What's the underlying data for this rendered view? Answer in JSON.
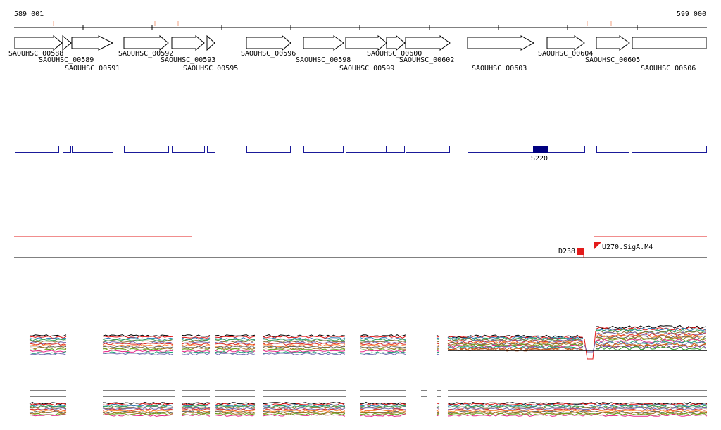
{
  "coordinates": {
    "start_label": "589 001",
    "end_label": "599 000"
  },
  "genes": [
    {
      "id": "SAOUHSC_00588",
      "label": "SAOUHSC_00588"
    },
    {
      "id": "SAOUHSC_00589",
      "label": "SAOUHSC_00589"
    },
    {
      "id": "SAOUHSC_00591",
      "label": "SAOUHSC_00591"
    },
    {
      "id": "SAOUHSC_00592",
      "label": "SAOUHSC_00592"
    },
    {
      "id": "SAOUHSC_00593",
      "label": "SAOUHSC_00593"
    },
    {
      "id": "SAOUHSC_00595",
      "label": "SAOUHSC_00595"
    },
    {
      "id": "SAOUHSC_00596",
      "label": "SAOUHSC_00596"
    },
    {
      "id": "SAOUHSC_00598",
      "label": "SAOUHSC_00598"
    },
    {
      "id": "SAOUHSC_00599",
      "label": "SAOUHSC_00599"
    },
    {
      "id": "SAOUHSC_00600",
      "label": "SAOUHSC_00600"
    },
    {
      "id": "SAOUHSC_00602",
      "label": "SAOUHSC_00602"
    },
    {
      "id": "SAOUHSC_00603",
      "label": "SAOUHSC_00603"
    },
    {
      "id": "SAOUHSC_00604",
      "label": "SAOUHSC_00604"
    },
    {
      "id": "SAOUHSC_00605",
      "label": "SAOUHSC_00605"
    },
    {
      "id": "SAOUHSC_00606",
      "label": "SAOUHSC_00606"
    }
  ],
  "features": {
    "segment_label": "S220",
    "downstream_label": "D238",
    "upstream_label": "U270.SigA.M4"
  },
  "colors": {
    "gene_outline": "#000000",
    "segment_outline": "#1a1a9a",
    "segment_highlight": "#000080",
    "terminator": "#e31b1b",
    "axis": "#000000"
  }
}
